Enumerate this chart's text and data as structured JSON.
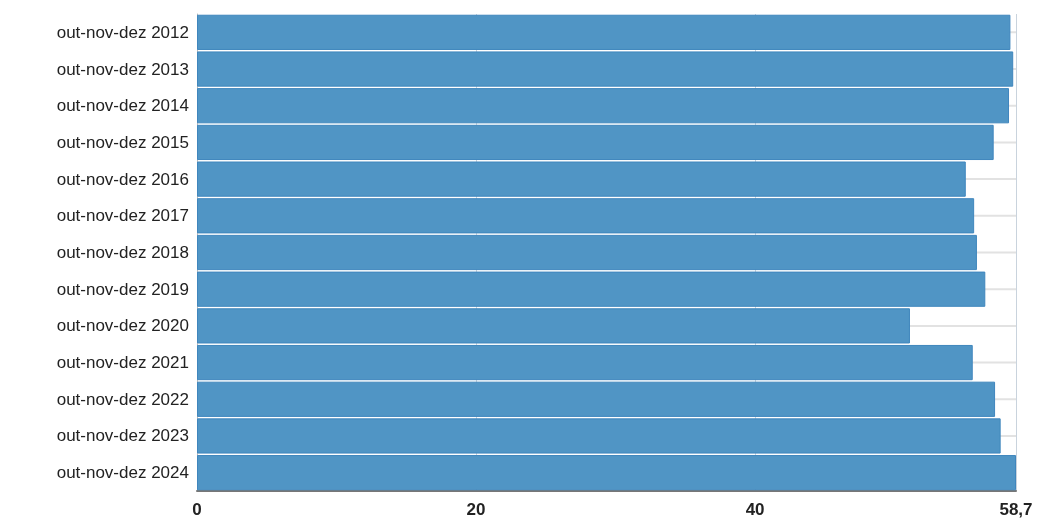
{
  "chart_data": {
    "type": "bar",
    "orientation": "horizontal",
    "categories": [
      "out-nov-dez 2012",
      "out-nov-dez 2013",
      "out-nov-dez 2014",
      "out-nov-dez 2015",
      "out-nov-dez 2016",
      "out-nov-dez 2017",
      "out-nov-dez 2018",
      "out-nov-dez 2019",
      "out-nov-dez 2020",
      "out-nov-dez 2021",
      "out-nov-dez 2022",
      "out-nov-dez 2023",
      "out-nov-dez 2024"
    ],
    "values": [
      58.3,
      58.5,
      58.2,
      57.1,
      55.1,
      55.7,
      55.9,
      56.5,
      51.1,
      55.6,
      57.2,
      57.6,
      58.7
    ],
    "color": "#5095c5",
    "xlim": [
      0,
      58.7
    ],
    "xticks": [
      0,
      20,
      40,
      {
        "value": 58.7,
        "label": "58,7"
      }
    ],
    "grid": true
  }
}
